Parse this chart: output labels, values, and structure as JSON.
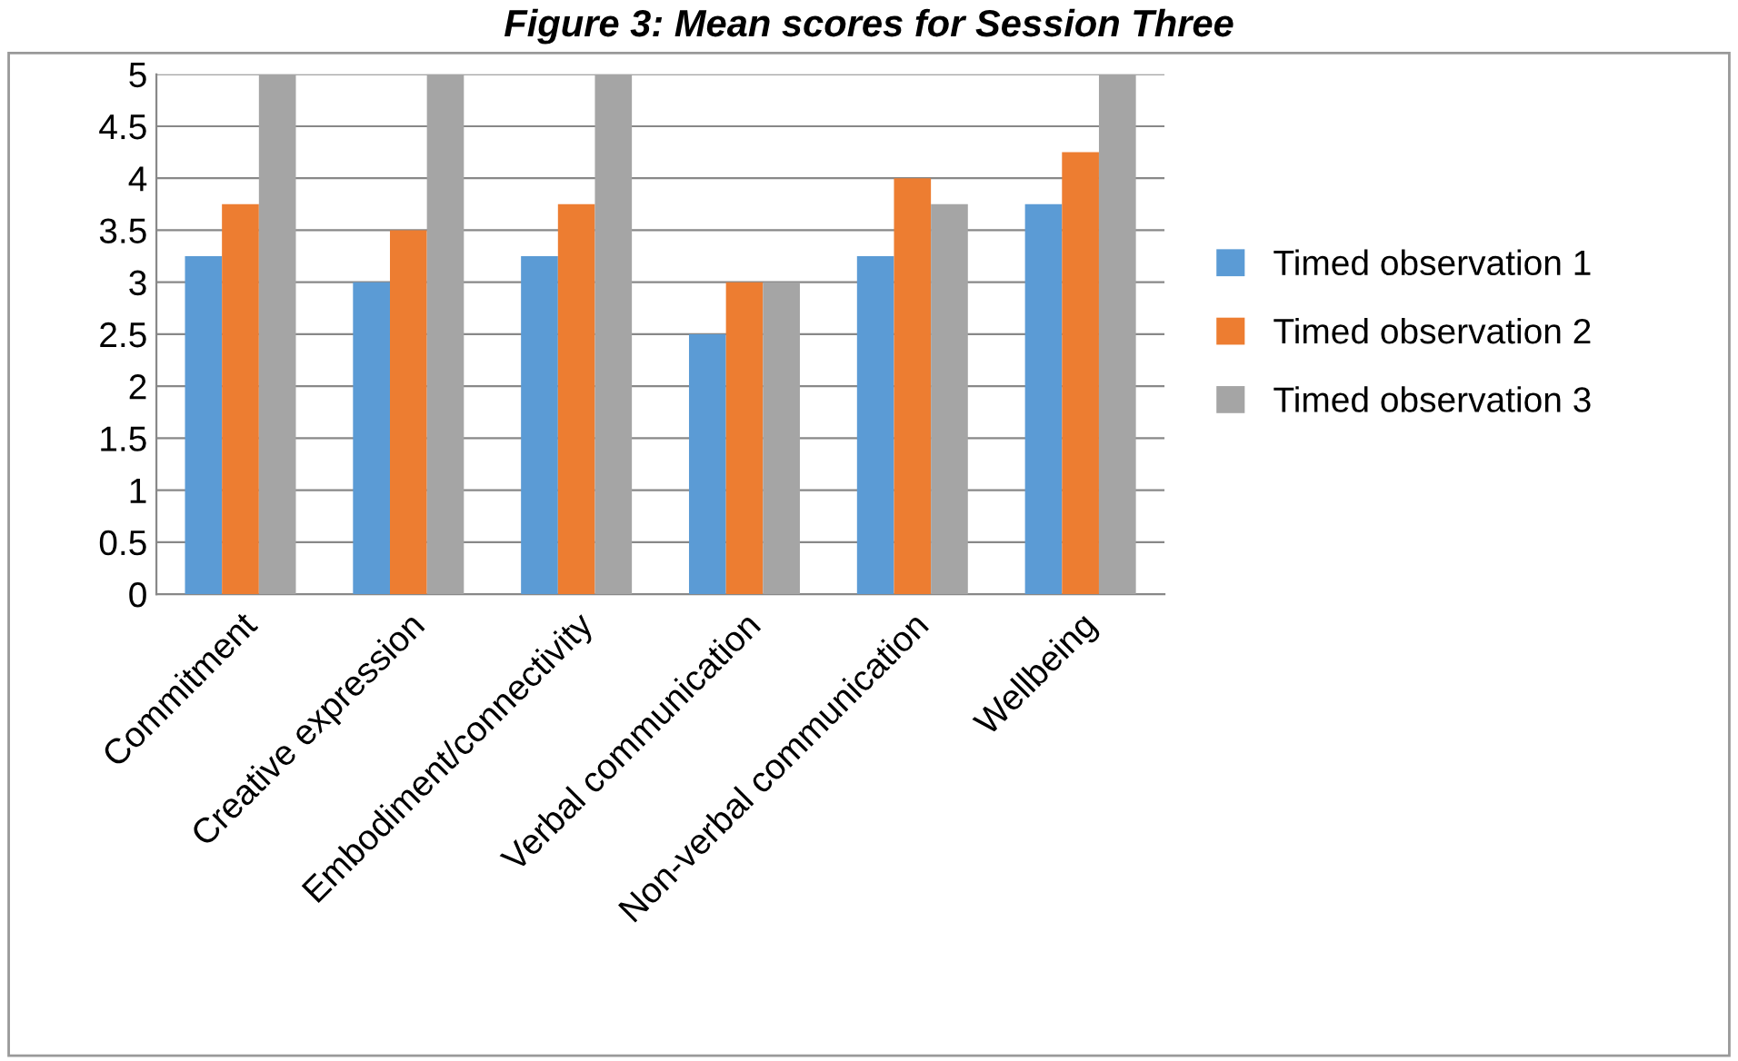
{
  "chart_data": {
    "type": "bar",
    "title": "Figure 3: Mean scores for Session Three",
    "categories": [
      "Commitment",
      "Creative expression",
      "Embodiment/connectivity",
      "Verbal communication",
      "Non-verbal communication",
      "Wellbeing"
    ],
    "series": [
      {
        "name": "Timed observation 1",
        "color": "#5b9bd5",
        "values": [
          3.25,
          3,
          3.25,
          2.5,
          3.25,
          3.75
        ]
      },
      {
        "name": "Timed observation 2",
        "color": "#ed7d31",
        "values": [
          3.75,
          3.5,
          3.75,
          3,
          4,
          4.25
        ]
      },
      {
        "name": "Timed observation 3",
        "color": "#a5a5a5",
        "values": [
          5,
          5,
          5,
          3,
          3.75,
          5
        ]
      }
    ],
    "ylim": [
      0,
      5
    ],
    "yticks": [
      0,
      0.5,
      1,
      1.5,
      2,
      2.5,
      3,
      3.5,
      4,
      4.5,
      5
    ],
    "grid": "y",
    "legend": "right"
  }
}
